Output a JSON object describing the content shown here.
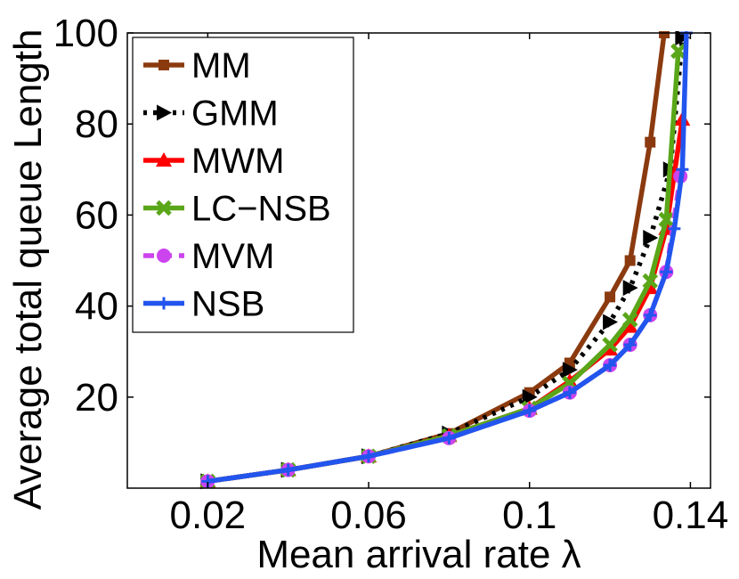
{
  "chart_data": {
    "type": "line",
    "title": "",
    "xlabel": "Mean arrival rate λ",
    "ylabel": "Average total queue Length",
    "xlim": [
      0,
      0.145
    ],
    "ylim": [
      0,
      100
    ],
    "xticks": [
      0.02,
      0.06,
      0.1,
      0.14
    ],
    "xtick_labels": [
      "0.02",
      "0.06",
      "0.1",
      "0.14"
    ],
    "yticks": [
      20,
      40,
      60,
      80,
      100
    ],
    "ytick_labels": [
      "20",
      "40",
      "60",
      "80",
      "100"
    ],
    "legend_position": "top-left",
    "series": [
      {
        "name": "MM",
        "color": "#8b3a0f",
        "dash": "solid",
        "marker": "square",
        "points": [
          [
            0.02,
            1.5
          ],
          [
            0.04,
            4
          ],
          [
            0.06,
            7
          ],
          [
            0.08,
            12
          ],
          [
            0.1,
            21
          ],
          [
            0.11,
            27.5
          ],
          [
            0.12,
            42
          ],
          [
            0.125,
            50
          ],
          [
            0.13,
            76
          ],
          [
            0.1335,
            100
          ]
        ]
      },
      {
        "name": "GMM",
        "color": "#000000",
        "dash": "dotted",
        "marker": "triangle-right",
        "points": [
          [
            0.02,
            1.5
          ],
          [
            0.04,
            4
          ],
          [
            0.06,
            7
          ],
          [
            0.08,
            12
          ],
          [
            0.1,
            20
          ],
          [
            0.11,
            26
          ],
          [
            0.12,
            36.5
          ],
          [
            0.125,
            44
          ],
          [
            0.13,
            55
          ],
          [
            0.135,
            70
          ],
          [
            0.138,
            99
          ]
        ]
      },
      {
        "name": "MWM",
        "color": "#ff0000",
        "dash": "solid",
        "marker": "triangle-up",
        "points": [
          [
            0.02,
            1.5
          ],
          [
            0.04,
            4
          ],
          [
            0.06,
            7
          ],
          [
            0.08,
            11.5
          ],
          [
            0.1,
            17.5
          ],
          [
            0.11,
            23.5
          ],
          [
            0.12,
            30.5
          ],
          [
            0.125,
            35.5
          ],
          [
            0.13,
            44
          ],
          [
            0.134,
            57
          ],
          [
            0.138,
            81
          ]
        ]
      },
      {
        "name": "LC−NSB",
        "color": "#5aa619",
        "dash": "solid",
        "marker": "x",
        "points": [
          [
            0.02,
            1.5
          ],
          [
            0.04,
            4
          ],
          [
            0.06,
            7
          ],
          [
            0.08,
            11.5
          ],
          [
            0.1,
            17.5
          ],
          [
            0.11,
            23
          ],
          [
            0.12,
            31.5
          ],
          [
            0.125,
            37
          ],
          [
            0.13,
            45.5
          ],
          [
            0.134,
            59
          ],
          [
            0.137,
            96
          ]
        ]
      },
      {
        "name": "MVM",
        "color": "#cc44ee",
        "dash": "dashed",
        "marker": "circle",
        "points": [
          [
            0.02,
            1.5
          ],
          [
            0.04,
            4
          ],
          [
            0.06,
            7
          ],
          [
            0.08,
            11
          ],
          [
            0.1,
            17
          ],
          [
            0.11,
            21
          ],
          [
            0.12,
            27
          ],
          [
            0.125,
            31.5
          ],
          [
            0.13,
            38
          ],
          [
            0.134,
            47.5
          ],
          [
            0.1375,
            68.5
          ]
        ]
      },
      {
        "name": "NSB",
        "color": "#2255ee",
        "dash": "solid",
        "marker": "plus",
        "points": [
          [
            0.02,
            1.5
          ],
          [
            0.04,
            4
          ],
          [
            0.06,
            7
          ],
          [
            0.08,
            11
          ],
          [
            0.1,
            17
          ],
          [
            0.11,
            21
          ],
          [
            0.12,
            27
          ],
          [
            0.125,
            31.5
          ],
          [
            0.13,
            38
          ],
          [
            0.134,
            47.5
          ],
          [
            0.136,
            57
          ],
          [
            0.138,
            70
          ],
          [
            0.139,
            100
          ]
        ]
      }
    ]
  }
}
